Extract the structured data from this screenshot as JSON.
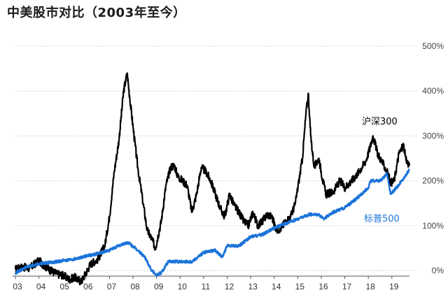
{
  "chart_data": {
    "type": "line",
    "title": "中美股市对比（2003年至今）",
    "xlabel": "",
    "ylabel": "",
    "x_ticks": [
      "03",
      "04",
      "05",
      "06",
      "07",
      "08",
      "09",
      "10",
      "11",
      "12",
      "13",
      "14",
      "15",
      "16",
      "17",
      "18",
      "19"
    ],
    "y_ticks": [
      "0%",
      "100%",
      "200%",
      "300%",
      "400%",
      "500%"
    ],
    "xlim": [
      2003.0,
      2019.75
    ],
    "ylim": [
      0,
      500
    ],
    "grid": true,
    "series": [
      {
        "name": "沪深300",
        "color": "#000000",
        "x": [
          2003.0,
          2003.3,
          2003.6,
          2004.0,
          2004.2,
          2004.5,
          2004.8,
          2005.0,
          2005.3,
          2005.5,
          2005.8,
          2006.0,
          2006.2,
          2006.5,
          2006.8,
          2007.0,
          2007.2,
          2007.4,
          2007.6,
          2007.75,
          2007.85,
          2008.0,
          2008.2,
          2008.4,
          2008.6,
          2008.8,
          2008.95,
          2009.2,
          2009.4,
          2009.6,
          2009.75,
          2009.9,
          2010.1,
          2010.3,
          2010.5,
          2010.7,
          2010.9,
          2011.1,
          2011.3,
          2011.5,
          2011.7,
          2011.9,
          2012.1,
          2012.3,
          2012.5,
          2012.7,
          2012.9,
          2013.1,
          2013.3,
          2013.5,
          2013.7,
          2013.9,
          2014.1,
          2014.3,
          2014.5,
          2014.7,
          2014.9,
          2015.05,
          2015.2,
          2015.35,
          2015.45,
          2015.55,
          2015.7,
          2015.9,
          2016.05,
          2016.2,
          2016.5,
          2016.8,
          2017.0,
          2017.3,
          2017.6,
          2017.9,
          2018.05,
          2018.2,
          2018.4,
          2018.6,
          2018.8,
          2018.95,
          2019.1,
          2019.3,
          2019.5,
          2019.6,
          2019.75
        ],
        "values": [
          3,
          8,
          5,
          22,
          12,
          0,
          -8,
          -10,
          -20,
          -15,
          -25,
          -5,
          15,
          25,
          55,
          120,
          220,
          290,
          400,
          440,
          390,
          320,
          230,
          160,
          90,
          70,
          50,
          110,
          190,
          230,
          235,
          210,
          200,
          190,
          130,
          170,
          230,
          220,
          200,
          170,
          140,
          120,
          170,
          145,
          130,
          110,
          100,
          130,
          100,
          110,
          125,
          120,
          90,
          95,
          110,
          120,
          150,
          200,
          250,
          350,
          395,
          300,
          230,
          250,
          205,
          170,
          175,
          200,
          185,
          200,
          220,
          245,
          270,
          300,
          260,
          240,
          220,
          195,
          200,
          260,
          280,
          245,
          235
        ]
      },
      {
        "name": "标普500",
        "color": "#1a73d9",
        "x": [
          2003.0,
          2003.5,
          2004.0,
          2004.5,
          2005.0,
          2005.5,
          2006.0,
          2006.5,
          2007.0,
          2007.5,
          2007.8,
          2008.2,
          2008.5,
          2008.8,
          2009.0,
          2009.2,
          2009.5,
          2010.0,
          2010.5,
          2011.0,
          2011.5,
          2011.8,
          2012.0,
          2012.5,
          2013.0,
          2013.5,
          2014.0,
          2014.5,
          2015.0,
          2015.5,
          2015.9,
          2016.1,
          2016.5,
          2017.0,
          2017.5,
          2018.0,
          2018.1,
          2018.5,
          2018.8,
          2018.95,
          2019.2,
          2019.5,
          2019.75
        ],
        "values": [
          -5,
          8,
          15,
          18,
          22,
          26,
          32,
          38,
          45,
          58,
          62,
          45,
          30,
          0,
          -10,
          -5,
          20,
          20,
          20,
          40,
          45,
          30,
          55,
          55,
          75,
          80,
          95,
          105,
          115,
          125,
          125,
          115,
          130,
          140,
          160,
          185,
          200,
          200,
          215,
          170,
          185,
          205,
          225
        ]
      }
    ],
    "annotations": [
      {
        "text": "沪深300",
        "series": "沪深300"
      },
      {
        "text": "标普500",
        "series": "标普500"
      }
    ]
  }
}
